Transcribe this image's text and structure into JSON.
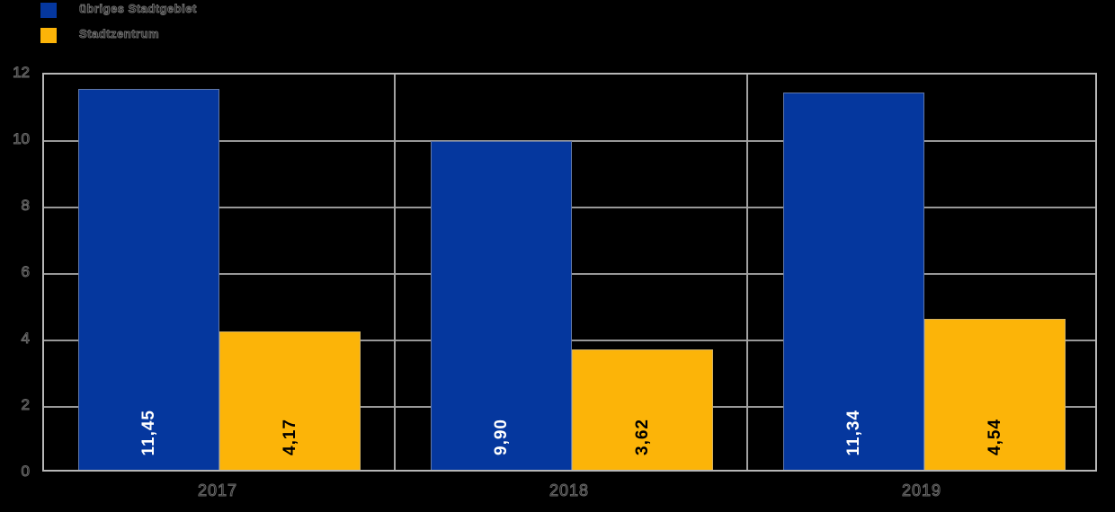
{
  "colors": {
    "background": "#000000",
    "series_blue": "#05379e",
    "series_orange": "#fcb408",
    "grid": "#989898",
    "plot_border": "#b7b7b7",
    "value_label_on_blue": "#ffffff",
    "value_label_on_orange": "#000000"
  },
  "legend": {
    "items": [
      {
        "label": "übriges Stadtgebiet",
        "color": "#05379e"
      },
      {
        "label": "Stadtzentrum",
        "color": "#fcb408"
      }
    ]
  },
  "chart_data": {
    "type": "bar",
    "title": "",
    "xlabel": "",
    "ylabel": "",
    "categories": [
      "2017",
      "2018",
      "2019"
    ],
    "series": [
      {
        "name": "übriges Stadtgebiet",
        "color": "#05379e",
        "values": [
          11.45,
          9.9,
          11.34
        ],
        "value_labels": [
          "11,45",
          "9,90",
          "11,34"
        ],
        "label_color": "#ffffff"
      },
      {
        "name": "Stadtzentrum",
        "color": "#fcb408",
        "values": [
          4.17,
          3.62,
          4.54
        ],
        "value_labels": [
          "4,17",
          "3,62",
          "4,54"
        ],
        "label_color": "#000000"
      }
    ],
    "ylim": [
      0,
      12
    ],
    "ytick_labels_top_to_bottom": [
      "12",
      "10",
      "8",
      "6",
      "4",
      "2",
      "0"
    ],
    "grid": true,
    "legend_position": "top-left"
  }
}
